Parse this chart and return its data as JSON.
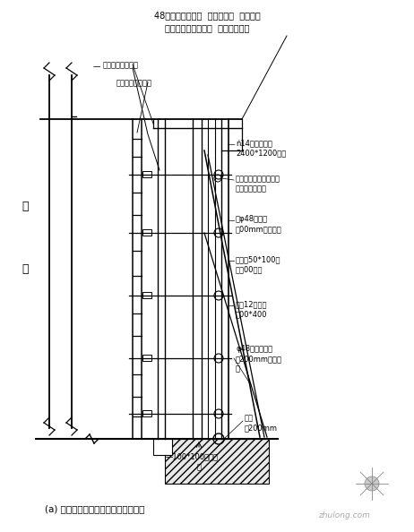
{
  "title_line1": "48钉钉管支撑排架  底板对地锦  用箋箋与",
  "title_line2": "水平钉钉管拉提压顶  防止模洿上浮",
  "caption": "(a) 地下室外墙双侧模板安装示意图一",
  "label1": "用结杠与模墙顶紧",
  "label2": "操作钉鑉管脚手架",
  "label3_1": "ń14厚木多层板",
  "label3_2": "2400*1200竖放",
  "label4_1": "横龙骨用「嵌入」牛，",
  "label4_2": "螺母与横板紧固",
  "label5_1": "双φ48鑉鑉管",
  "label5_2": "怄00mm横向排布",
  "label6_1": "次龙骨50*100木",
  "label6_2": "方怃00竖放",
  "label7_1": "直径12对拉螺",
  "label7_2": "栆00*400",
  "label8_1": "φ48鑉鑉管支顶",
  "label8_2": "态200mm横向排",
  "label8_3": "布",
  "label9_1": "地锦",
  "label9_2": "态200mm",
  "label_left1": "护",
  "label_left2": "柱",
  "label_bottom1": "—100*100木方支",
  "label_bottom2": "顶",
  "bg_color": "#ffffff",
  "line_color": "#000000",
  "font_size_title": 7,
  "font_size_label": 6,
  "font_size_caption": 7.5
}
